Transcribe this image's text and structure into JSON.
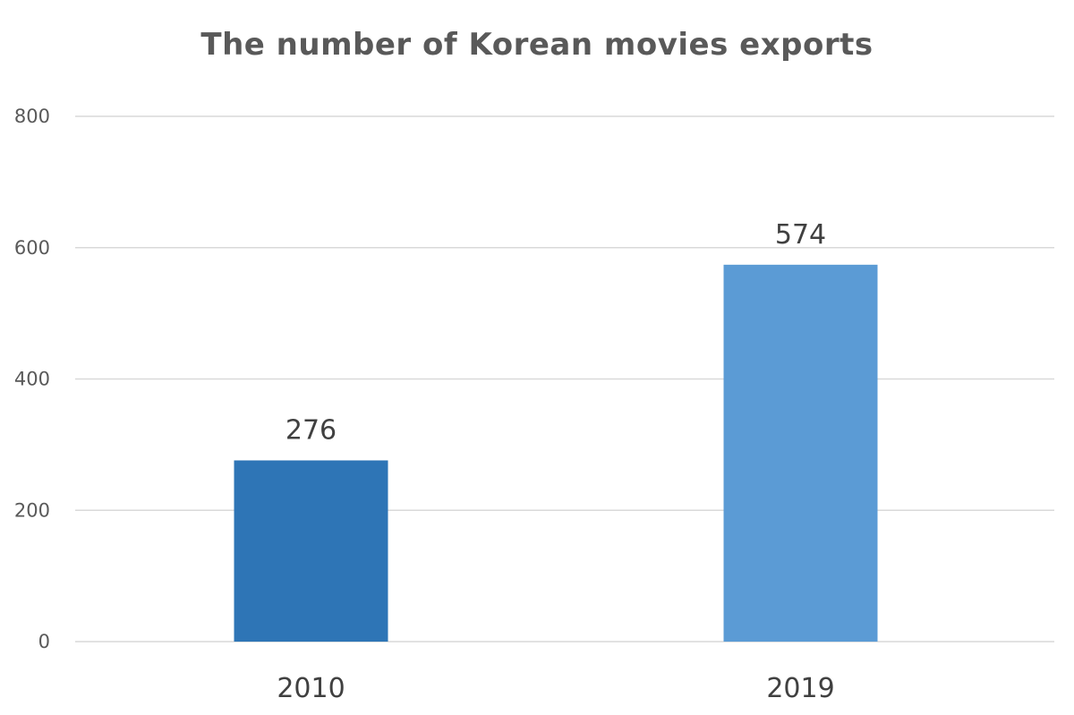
{
  "chart_data": {
    "type": "bar",
    "title": "The number of Korean movies exports",
    "xlabel": "",
    "ylabel": "",
    "categories": [
      "2010",
      "2019"
    ],
    "values": [
      276,
      574
    ],
    "data_labels": [
      "276",
      "574"
    ],
    "ylim": [
      0,
      800
    ],
    "yticks": [
      0,
      200,
      400,
      600,
      800
    ],
    "ytick_labels": [
      "0",
      "200",
      "400",
      "600",
      "800"
    ],
    "grid": true,
    "legend": "none",
    "colors": {
      "bars": [
        "#2e75b6",
        "#5b9bd5"
      ],
      "grid": "#d9d9d9",
      "title": "#595959",
      "text": "#404040"
    }
  }
}
